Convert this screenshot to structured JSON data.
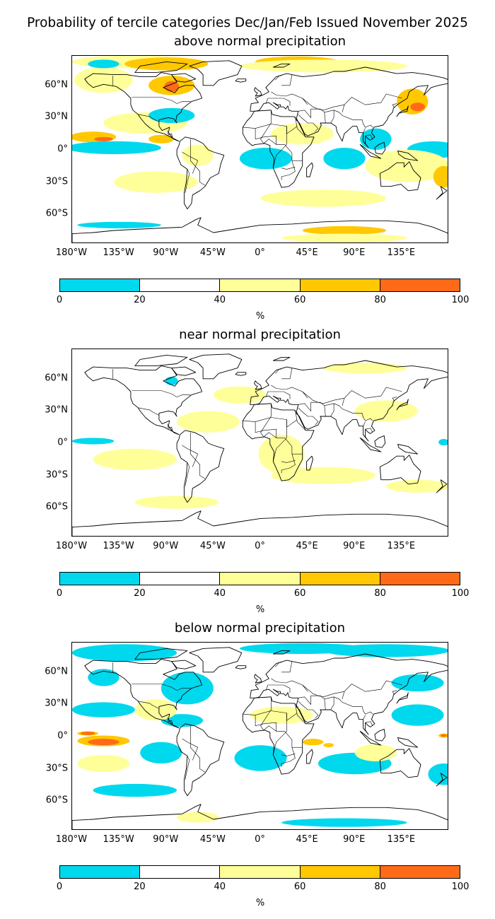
{
  "title": "Probability of tercile categories Dec/Jan/Feb Issued November 2025",
  "colorbar": {
    "ticks": [
      "0",
      "20",
      "40",
      "60",
      "80",
      "100"
    ],
    "unit": "%",
    "colors": [
      "#00d8ee",
      "#ffffff",
      "#ffff99",
      "#ffc800",
      "#ff6a18"
    ]
  },
  "lat_labels": [
    "60°N",
    "30°N",
    "0°",
    "30°S",
    "60°S"
  ],
  "lon_labels": [
    "180°W",
    "135°W",
    "90°W",
    "45°W",
    "0°",
    "45°E",
    "90°E",
    "135°E"
  ],
  "colors": {
    "land_outline": "#000000",
    "ocean": "#ffffff"
  },
  "panels": [
    {
      "title": "above normal precipitation",
      "regions": [
        {
          "color": "#ffff99",
          "lon": -150,
          "lat": 65,
          "rlon": 28,
          "rlat": 12
        },
        {
          "color": "#ffff99",
          "lon": -120,
          "lat": 82,
          "rlon": 60,
          "rlat": 6
        },
        {
          "color": "#ffc800",
          "lon": -90,
          "lat": 80,
          "rlon": 40,
          "rlat": 6
        },
        {
          "color": "#ffc800",
          "lon": -85,
          "lat": 60,
          "rlon": 22,
          "rlat": 9
        },
        {
          "color": "#ff6a18",
          "lon": -85,
          "lat": 59,
          "rlon": 7,
          "rlat": 5
        },
        {
          "color": "#ffc800",
          "lon": 35,
          "lat": 82,
          "rlon": 40,
          "rlat": 5
        },
        {
          "color": "#ffff99",
          "lon": 60,
          "lat": 78,
          "rlon": 80,
          "rlat": 6
        },
        {
          "color": "#ffc800",
          "lon": 145,
          "lat": 45,
          "rlon": 15,
          "rlat": 12
        },
        {
          "color": "#ff6a18",
          "lon": 150,
          "lat": 40,
          "rlon": 7,
          "rlat": 4
        },
        {
          "color": "#ffc800",
          "lon": -160,
          "lat": 12,
          "rlon": 22,
          "rlat": 5
        },
        {
          "color": "#ff6a18",
          "lon": -150,
          "lat": 10,
          "rlon": 9,
          "rlat": 2
        },
        {
          "color": "#ffff99",
          "lon": -110,
          "lat": 25,
          "rlon": 40,
          "rlat": 10
        },
        {
          "color": "#ffc800",
          "lon": -95,
          "lat": 10,
          "rlon": 12,
          "rlat": 4
        },
        {
          "color": "#00d8ee",
          "lon": -140,
          "lat": 2,
          "rlon": 45,
          "rlat": 6
        },
        {
          "color": "#00d8ee",
          "lon": 165,
          "lat": 0,
          "rlon": 25,
          "rlat": 8
        },
        {
          "color": "#00d8ee",
          "lon": -85,
          "lat": 32,
          "rlon": 22,
          "rlat": 7
        },
        {
          "color": "#00d8ee",
          "lon": 5,
          "lat": -8,
          "rlon": 25,
          "rlat": 10
        },
        {
          "color": "#00d8ee",
          "lon": 80,
          "lat": -8,
          "rlon": 20,
          "rlat": 10
        },
        {
          "color": "#ffff99",
          "lon": 140,
          "lat": -15,
          "rlon": 40,
          "rlat": 15
        },
        {
          "color": "#ffc800",
          "lon": 175,
          "lat": -25,
          "rlon": 10,
          "rlat": 10
        },
        {
          "color": "#ffff99",
          "lon": -100,
          "lat": -30,
          "rlon": 40,
          "rlat": 10
        },
        {
          "color": "#ffff99",
          "lon": 60,
          "lat": -45,
          "rlon": 60,
          "rlat": 8
        },
        {
          "color": "#ffc800",
          "lon": 80,
          "lat": -75,
          "rlon": 40,
          "rlat": 4
        },
        {
          "color": "#ffff99",
          "lon": 80,
          "lat": -82,
          "rlon": 60,
          "rlat": 4
        },
        {
          "color": "#00d8ee",
          "lon": -135,
          "lat": -70,
          "rlon": 40,
          "rlat": 3
        },
        {
          "color": "#ffff99",
          "lon": 40,
          "lat": 15,
          "rlon": 30,
          "rlat": 10
        },
        {
          "color": "#ffff99",
          "lon": -60,
          "lat": -5,
          "rlon": 15,
          "rlat": 10
        },
        {
          "color": "#00d8ee",
          "lon": 110,
          "lat": 10,
          "rlon": 15,
          "rlat": 10
        },
        {
          "color": "#00d8ee",
          "lon": -150,
          "lat": 80,
          "rlon": 15,
          "rlat": 4
        }
      ]
    },
    {
      "title": "near normal precipitation",
      "regions": [
        {
          "color": "#ffff99",
          "lon": 20,
          "lat": -10,
          "rlon": 22,
          "rlat": 18
        },
        {
          "color": "#ffff99",
          "lon": -50,
          "lat": 20,
          "rlon": 30,
          "rlat": 10
        },
        {
          "color": "#ffff99",
          "lon": -120,
          "lat": -15,
          "rlon": 40,
          "rlat": 10
        },
        {
          "color": "#ffff99",
          "lon": 60,
          "lat": -30,
          "rlon": 50,
          "rlat": 8
        },
        {
          "color": "#ffff99",
          "lon": -80,
          "lat": -55,
          "rlon": 40,
          "rlat": 6
        },
        {
          "color": "#ffff99",
          "lon": 120,
          "lat": 30,
          "rlon": 30,
          "rlat": 10
        },
        {
          "color": "#ffff99",
          "lon": 150,
          "lat": -40,
          "rlon": 30,
          "rlat": 6
        },
        {
          "color": "#00d8ee",
          "lon": -160,
          "lat": 2,
          "rlon": 20,
          "rlat": 3
        },
        {
          "color": "#00d8ee",
          "lon": -85,
          "lat": 58,
          "rlon": 6,
          "rlat": 4
        },
        {
          "color": "#00d8ee",
          "lon": 175,
          "lat": 1,
          "rlon": 5,
          "rlat": 3
        },
        {
          "color": "#ffff99",
          "lon": -20,
          "lat": 45,
          "rlon": 25,
          "rlat": 8
        },
        {
          "color": "#ffff99",
          "lon": 100,
          "lat": 70,
          "rlon": 40,
          "rlat": 5
        }
      ]
    },
    {
      "title": "below normal precipitation",
      "regions": [
        {
          "color": "#00d8ee",
          "lon": -130,
          "lat": 78,
          "rlon": 50,
          "rlat": 8
        },
        {
          "color": "#00d8ee",
          "lon": 40,
          "lat": 82,
          "rlon": 60,
          "rlat": 5
        },
        {
          "color": "#00d8ee",
          "lon": 120,
          "lat": 80,
          "rlon": 60,
          "rlat": 6
        },
        {
          "color": "#00d8ee",
          "lon": -70,
          "lat": 45,
          "rlon": 25,
          "rlat": 15
        },
        {
          "color": "#00d8ee",
          "lon": -150,
          "lat": 55,
          "rlon": 15,
          "rlat": 8
        },
        {
          "color": "#00d8ee",
          "lon": 150,
          "lat": 50,
          "rlon": 25,
          "rlat": 8
        },
        {
          "color": "#00d8ee",
          "lon": 150,
          "lat": 20,
          "rlon": 25,
          "rlat": 10
        },
        {
          "color": "#00d8ee",
          "lon": -150,
          "lat": 25,
          "rlon": 30,
          "rlat": 7
        },
        {
          "color": "#00d8ee",
          "lon": -75,
          "lat": 15,
          "rlon": 20,
          "rlat": 6
        },
        {
          "color": "#00d8ee",
          "lon": -95,
          "lat": -15,
          "rlon": 20,
          "rlat": 10
        },
        {
          "color": "#00d8ee",
          "lon": 0,
          "lat": -20,
          "rlon": 25,
          "rlat": 12
        },
        {
          "color": "#00d8ee",
          "lon": 90,
          "lat": -25,
          "rlon": 35,
          "rlat": 10
        },
        {
          "color": "#00d8ee",
          "lon": -120,
          "lat": -50,
          "rlon": 40,
          "rlat": 6
        },
        {
          "color": "#00d8ee",
          "lon": 80,
          "lat": -80,
          "rlon": 60,
          "rlat": 4
        },
        {
          "color": "#00d8ee",
          "lon": 175,
          "lat": -35,
          "rlon": 15,
          "rlat": 10
        },
        {
          "color": "#ffff99",
          "lon": -60,
          "lat": -75,
          "rlon": 20,
          "rlat": 5
        },
        {
          "color": "#ffff99",
          "lon": -150,
          "lat": -25,
          "rlon": 25,
          "rlat": 8
        },
        {
          "color": "#ffc800",
          "lon": -150,
          "lat": -4,
          "rlon": 25,
          "rlat": 5
        },
        {
          "color": "#ff6a18",
          "lon": -150,
          "lat": -5,
          "rlon": 15,
          "rlat": 3
        },
        {
          "color": "#ffc800",
          "lon": -165,
          "lat": 3,
          "rlon": 10,
          "rlat": 2
        },
        {
          "color": "#ff6a18",
          "lon": -165,
          "lat": 3,
          "rlon": 7,
          "rlat": 1.5
        },
        {
          "color": "#ffc800",
          "lon": 175,
          "lat": 1,
          "rlon": 5,
          "rlat": 2
        },
        {
          "color": "#ff6a18",
          "lon": 175,
          "lat": 1,
          "rlon": 3,
          "rlat": 1.2
        },
        {
          "color": "#ffc800",
          "lon": 50,
          "lat": -5,
          "rlon": 10,
          "rlat": 3
        },
        {
          "color": "#ffc800",
          "lon": 65,
          "lat": -8,
          "rlon": 5,
          "rlat": 2
        },
        {
          "color": "#ffff99",
          "lon": 20,
          "lat": 20,
          "rlon": 30,
          "rlat": 8
        },
        {
          "color": "#ffff99",
          "lon": -100,
          "lat": 25,
          "rlon": 20,
          "rlat": 10
        },
        {
          "color": "#ffff99",
          "lon": 110,
          "lat": -15,
          "rlon": 20,
          "rlat": 8
        }
      ]
    }
  ]
}
